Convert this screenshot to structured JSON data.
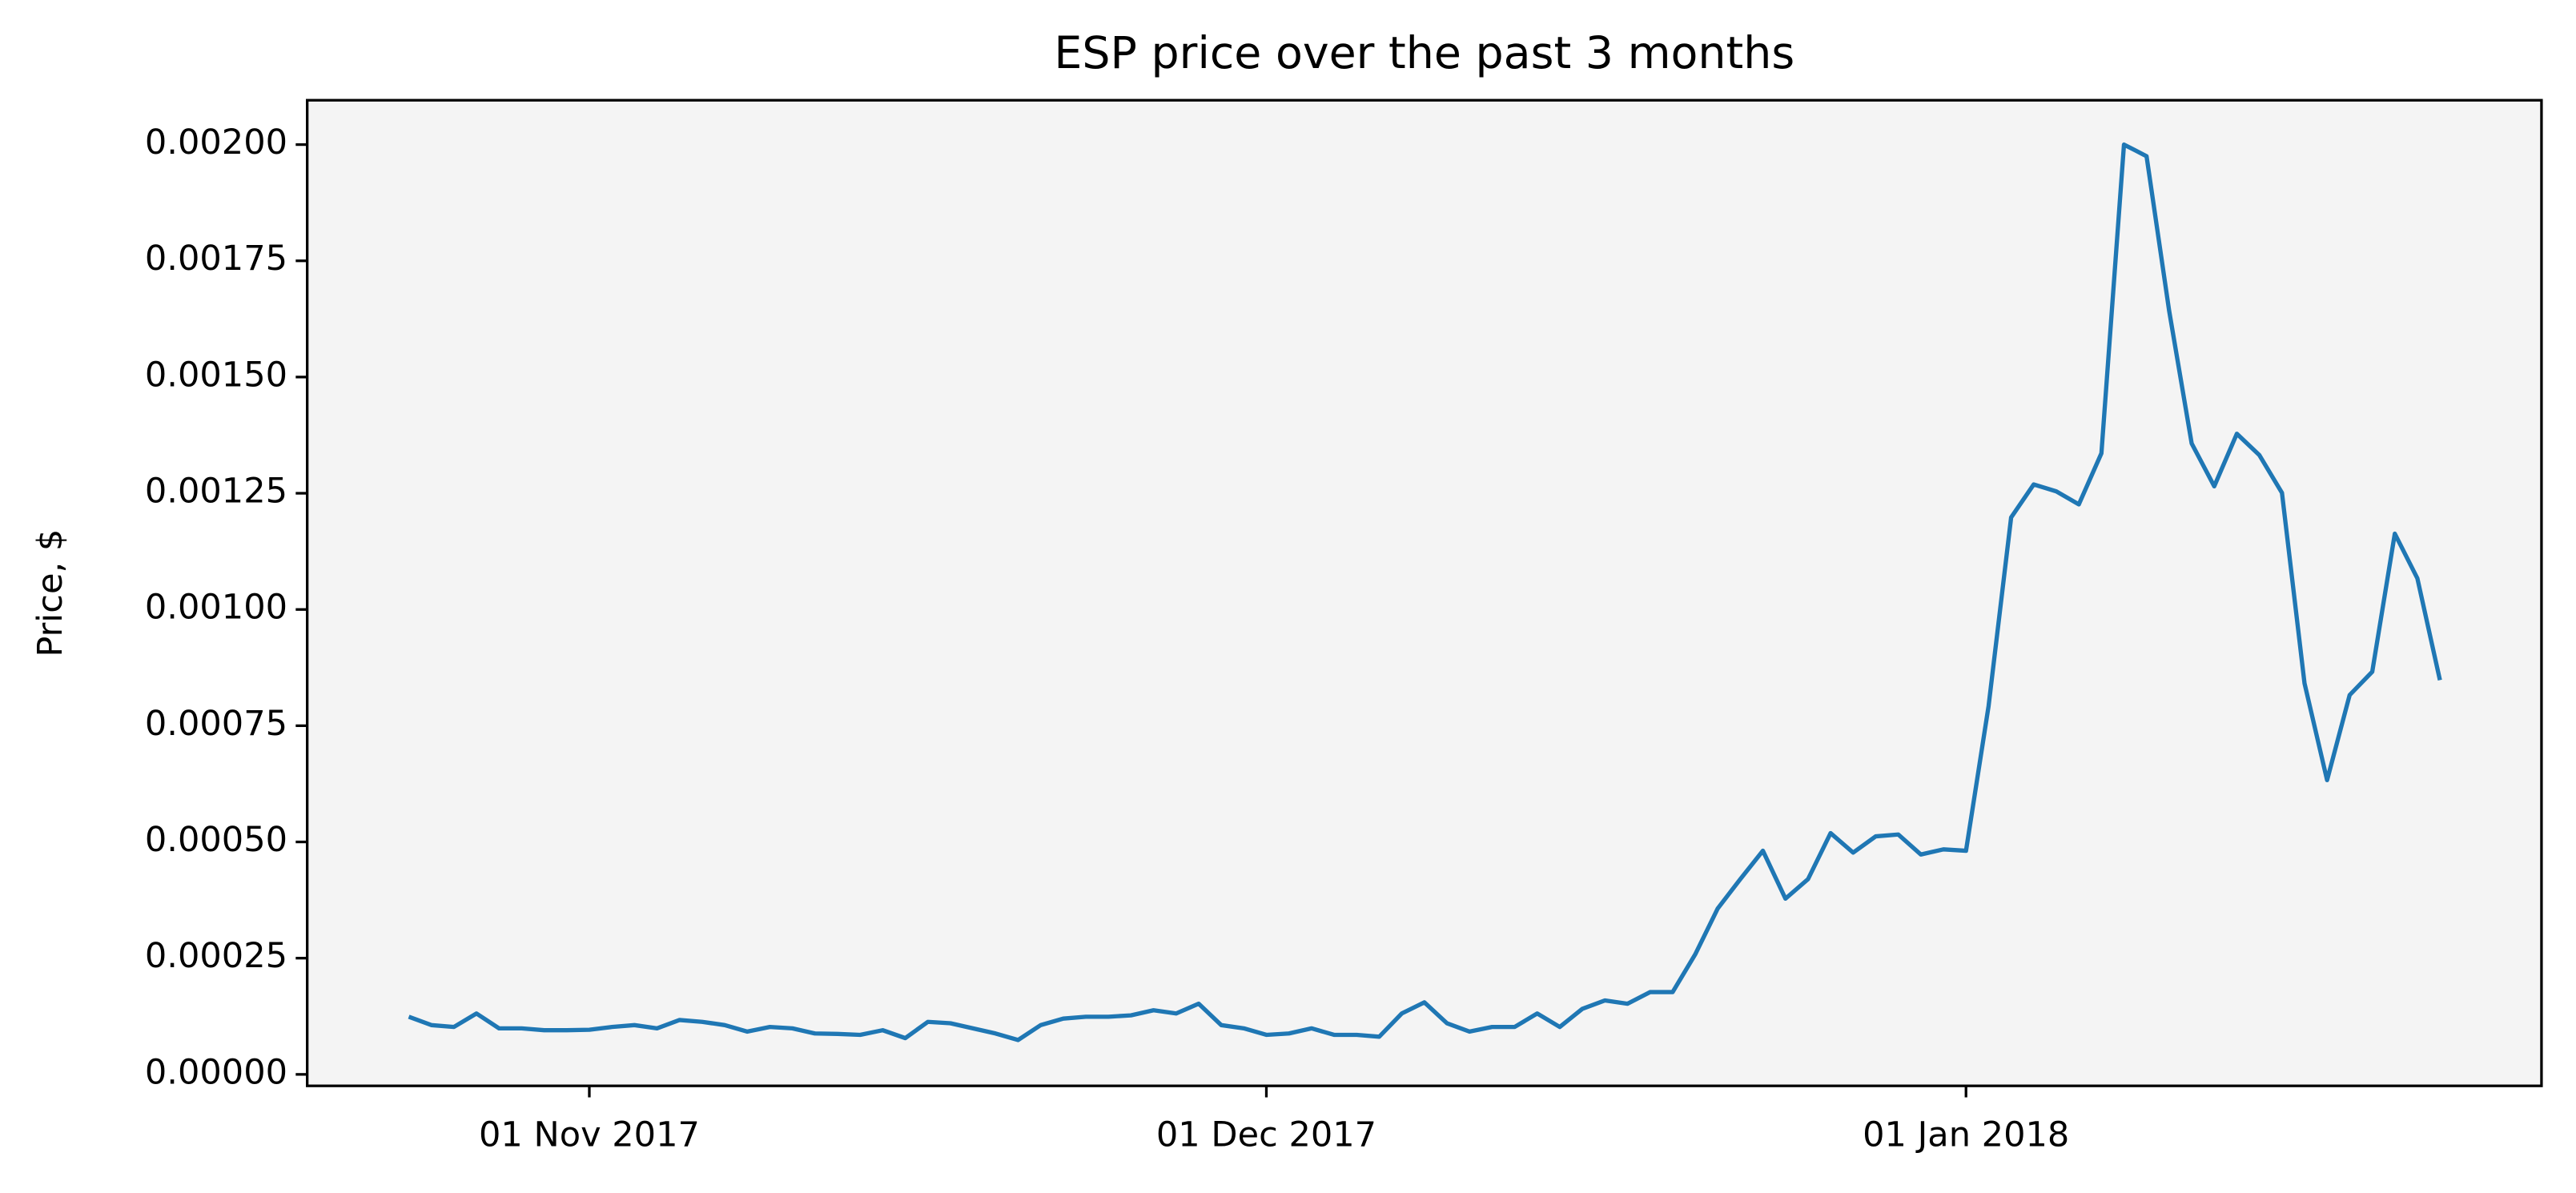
{
  "chart_data": {
    "type": "line",
    "title": "ESP price over the past 3 months",
    "y_label": "Price, $",
    "x": [
      "2017-10-24",
      "2017-10-25",
      "2017-10-26",
      "2017-10-27",
      "2017-10-28",
      "2017-10-29",
      "2017-10-30",
      "2017-10-31",
      "2017-11-01",
      "2017-11-02",
      "2017-11-03",
      "2017-11-04",
      "2017-11-05",
      "2017-11-06",
      "2017-11-07",
      "2017-11-08",
      "2017-11-09",
      "2017-11-10",
      "2017-11-11",
      "2017-11-12",
      "2017-11-13",
      "2017-11-14",
      "2017-11-15",
      "2017-11-16",
      "2017-11-17",
      "2017-11-18",
      "2017-11-19",
      "2017-11-20",
      "2017-11-21",
      "2017-11-22",
      "2017-11-23",
      "2017-11-24",
      "2017-11-25",
      "2017-11-26",
      "2017-11-27",
      "2017-11-28",
      "2017-11-29",
      "2017-11-30",
      "2017-12-01",
      "2017-12-02",
      "2017-12-03",
      "2017-12-04",
      "2017-12-05",
      "2017-12-06",
      "2017-12-07",
      "2017-12-08",
      "2017-12-09",
      "2017-12-10",
      "2017-12-11",
      "2017-12-12",
      "2017-12-13",
      "2017-12-14",
      "2017-12-15",
      "2017-12-16",
      "2017-12-17",
      "2017-12-18",
      "2017-12-19",
      "2017-12-20",
      "2017-12-21",
      "2017-12-22",
      "2017-12-23",
      "2017-12-24",
      "2017-12-25",
      "2017-12-26",
      "2017-12-27",
      "2017-12-28",
      "2017-12-29",
      "2017-12-30",
      "2017-12-31",
      "2018-01-01",
      "2018-01-02",
      "2018-01-03",
      "2018-01-04",
      "2018-01-05",
      "2018-01-06",
      "2018-01-07",
      "2018-01-08",
      "2018-01-09",
      "2018-01-10",
      "2018-01-11",
      "2018-01-12",
      "2018-01-13",
      "2018-01-14",
      "2018-01-15",
      "2018-01-16",
      "2018-01-17",
      "2018-01-18",
      "2018-01-19",
      "2018-01-20",
      "2018-01-21",
      "2018-01-22"
    ],
    "series": [
      {
        "name": "ESP",
        "color": "#1f77b4",
        "values": [
          0.000124,
          0.000106,
          0.000102,
          0.000131,
          9.9e-05,
          9.9e-05,
          9.5e-05,
          9.5e-05,
          9.6e-05,
          0.000102,
          0.000106,
          9.9e-05,
          0.000117,
          0.000113,
          0.000106,
          9.2e-05,
          0.000102,
          9.9e-05,
          8.8e-05,
          8.7e-05,
          8.5e-05,
          9.5e-05,
          7.8e-05,
          0.000113,
          0.00011,
          9.9e-05,
          8.8e-05,
          7.4e-05,
          0.000106,
          0.00012,
          0.000124,
          0.000124,
          0.000127,
          0.000138,
          0.000131,
          0.000152,
          0.000106,
          9.9e-05,
          8.5e-05,
          8.8e-05,
          9.9e-05,
          8.5e-05,
          8.5e-05,
          8.1e-05,
          0.000131,
          0.000155,
          0.00011,
          9.2e-05,
          0.000102,
          0.000102,
          0.000131,
          0.000102,
          0.000141,
          0.000159,
          0.000152,
          0.000177,
          0.000177,
          0.000258,
          0.000357,
          0.00042,
          0.000481,
          0.000378,
          0.00042,
          0.000519,
          0.000477,
          0.000512,
          0.000516,
          0.000473,
          0.000484,
          0.000481,
          0.000792,
          0.001198,
          0.001269,
          0.001254,
          0.001226,
          0.001336,
          0.002,
          0.001975,
          0.001643,
          0.001357,
          0.001265,
          0.001378,
          0.001332,
          0.001251,
          0.000841,
          0.000633,
          0.000816,
          0.000866,
          0.001163,
          0.001067,
          0.000848
        ]
      }
    ],
    "xlim": [
      "2017-10-19T12:00:00Z",
      "2018-01-26T12:00:00Z"
    ],
    "xticks": [
      {
        "value": "2017-11-01",
        "label": "01 Nov 2017"
      },
      {
        "value": "2017-12-01",
        "label": "01 Dec 2017"
      },
      {
        "value": "2018-01-01",
        "label": "01 Jan 2018"
      }
    ],
    "ylim": [
      -2.47e-05,
      0.0020954
    ],
    "yticks": [
      {
        "value": 0,
        "label": "0.00000"
      },
      {
        "value": 0.00025,
        "label": "0.00025"
      },
      {
        "value": 0.0005,
        "label": "0.00050"
      },
      {
        "value": 0.00075,
        "label": "0.00075"
      },
      {
        "value": 0.001,
        "label": "0.00100"
      },
      {
        "value": 0.00125,
        "label": "0.00125"
      },
      {
        "value": 0.0015,
        "label": "0.00150"
      },
      {
        "value": 0.00175,
        "label": "0.00175"
      },
      {
        "value": 0.002,
        "label": "0.00200"
      }
    ],
    "background": "#f4f4f4"
  }
}
